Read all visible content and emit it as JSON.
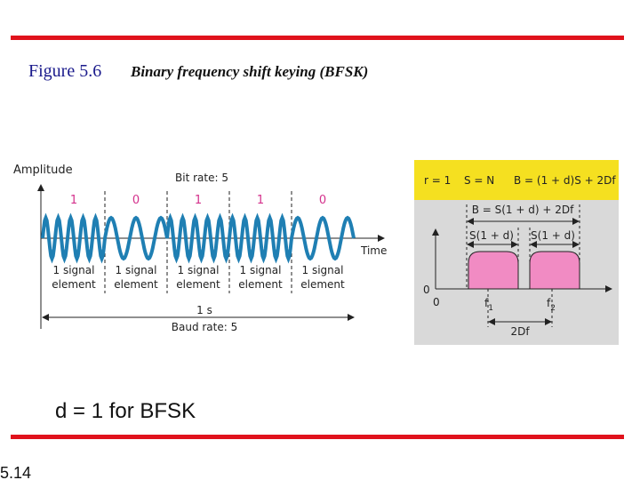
{
  "header": {
    "figure_label": "Figure 5.6",
    "figure_title": "Binary frequency shift keying (BFSK)"
  },
  "time_diagram": {
    "y_axis_label": "Amplitude",
    "bit_rate": "Bit rate: 5",
    "bits": [
      "1",
      "0",
      "1",
      "1",
      "0"
    ],
    "x_axis_label": "Time",
    "elements": [
      [
        "1 signal",
        "element"
      ],
      [
        "1 signal",
        "element"
      ],
      [
        "1 signal",
        "element"
      ],
      [
        "1 signal",
        "element"
      ],
      [
        "1 signal",
        "element"
      ]
    ],
    "duration": "1 s",
    "baud_rate": "Baud rate: 5"
  },
  "spectrum_diagram": {
    "header": [
      "r = 1",
      "S = N",
      "B = (1 + d)S + 2Df"
    ],
    "bandwidth": "B = S(1 + d) + 2Df",
    "band_labels": [
      "S(1 + d)",
      "S(1 + d)"
    ],
    "y_zero": "0",
    "x_zero": "0",
    "frequencies": [
      {
        "text": "f",
        "sub": "1"
      },
      {
        "text": "f",
        "sub": "2"
      }
    ],
    "separation": "2Df"
  },
  "note": "d = 1 for BFSK",
  "page_number": "5.14"
}
